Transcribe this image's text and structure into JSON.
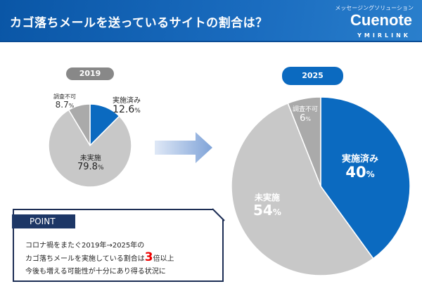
{
  "header": {
    "title": "カゴ落ちメールを送っているサイトの割合は？",
    "brand_sub": "メッセージングソリューション",
    "brand_logo": "Cuenote",
    "brand_maker": "YMIRLINK"
  },
  "colors": {
    "implemented": "#0b6ac0",
    "not_implemented": "#c8c8c8",
    "unknown": "#aaaaaa",
    "header": "#0a56a6"
  },
  "chart_data": [
    {
      "type": "pie",
      "title": "2019",
      "unit": "%",
      "categories": [
        "実施済み",
        "調査不可",
        "未実施"
      ],
      "values": [
        12.6,
        8.7,
        79.8
      ],
      "labels": [
        "12.6",
        "8.7",
        "79.8"
      ]
    },
    {
      "type": "pie",
      "title": "2025",
      "unit": "%",
      "categories": [
        "実施済み",
        "調査不可",
        "未実施"
      ],
      "values": [
        40,
        6,
        54
      ],
      "labels": [
        "40",
        "6",
        "54"
      ]
    }
  ],
  "point": {
    "tag": "POINT",
    "line1": "コロナ禍をまたぐ2019年→2025年の",
    "line2_pre": "カゴ落ちメールを実施している割合は",
    "line2_num": "3",
    "line2_post": "倍以上",
    "line3": "今後も増える可能性が十分にあり得る状況に"
  }
}
